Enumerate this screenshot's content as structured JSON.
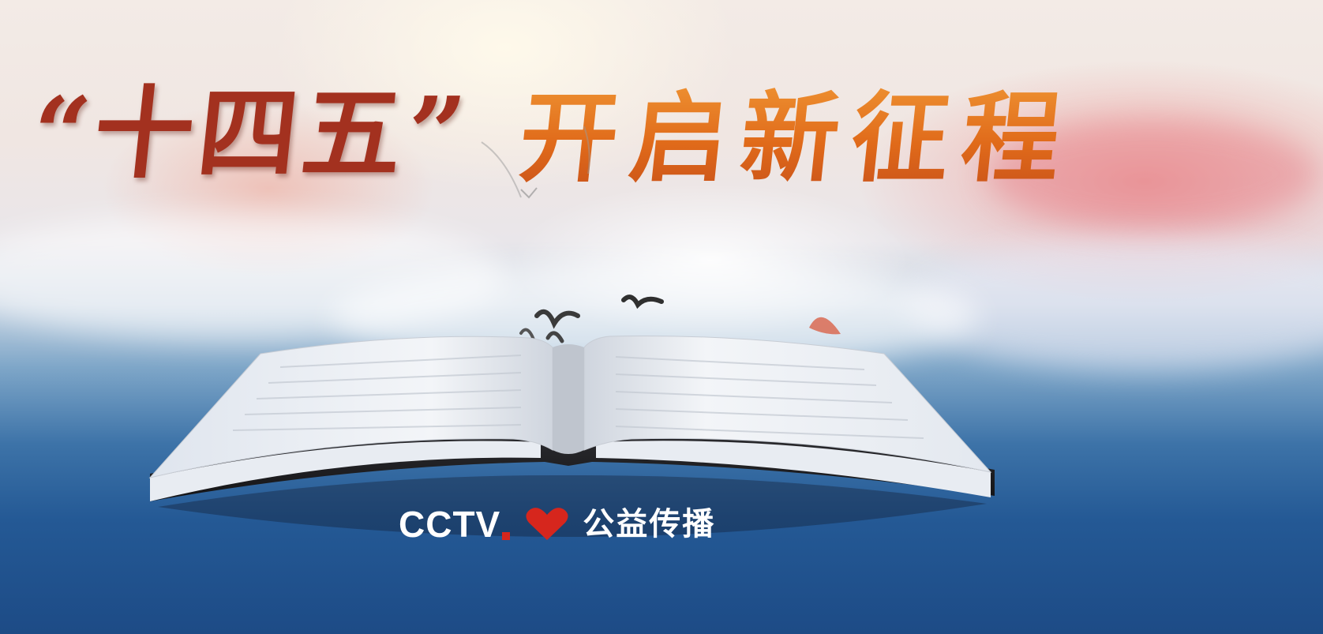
{
  "title": {
    "part_a": "“十四五”",
    "part_b": "开启新征程"
  },
  "logo": {
    "brand": "CCTV",
    "slogan": "公益传播",
    "heart_icon": "heart-icon"
  },
  "colors": {
    "title_red": "#a3311f",
    "title_orange": "#e2791e",
    "brand_red": "#d6261d",
    "sky_blue": "#245995"
  }
}
